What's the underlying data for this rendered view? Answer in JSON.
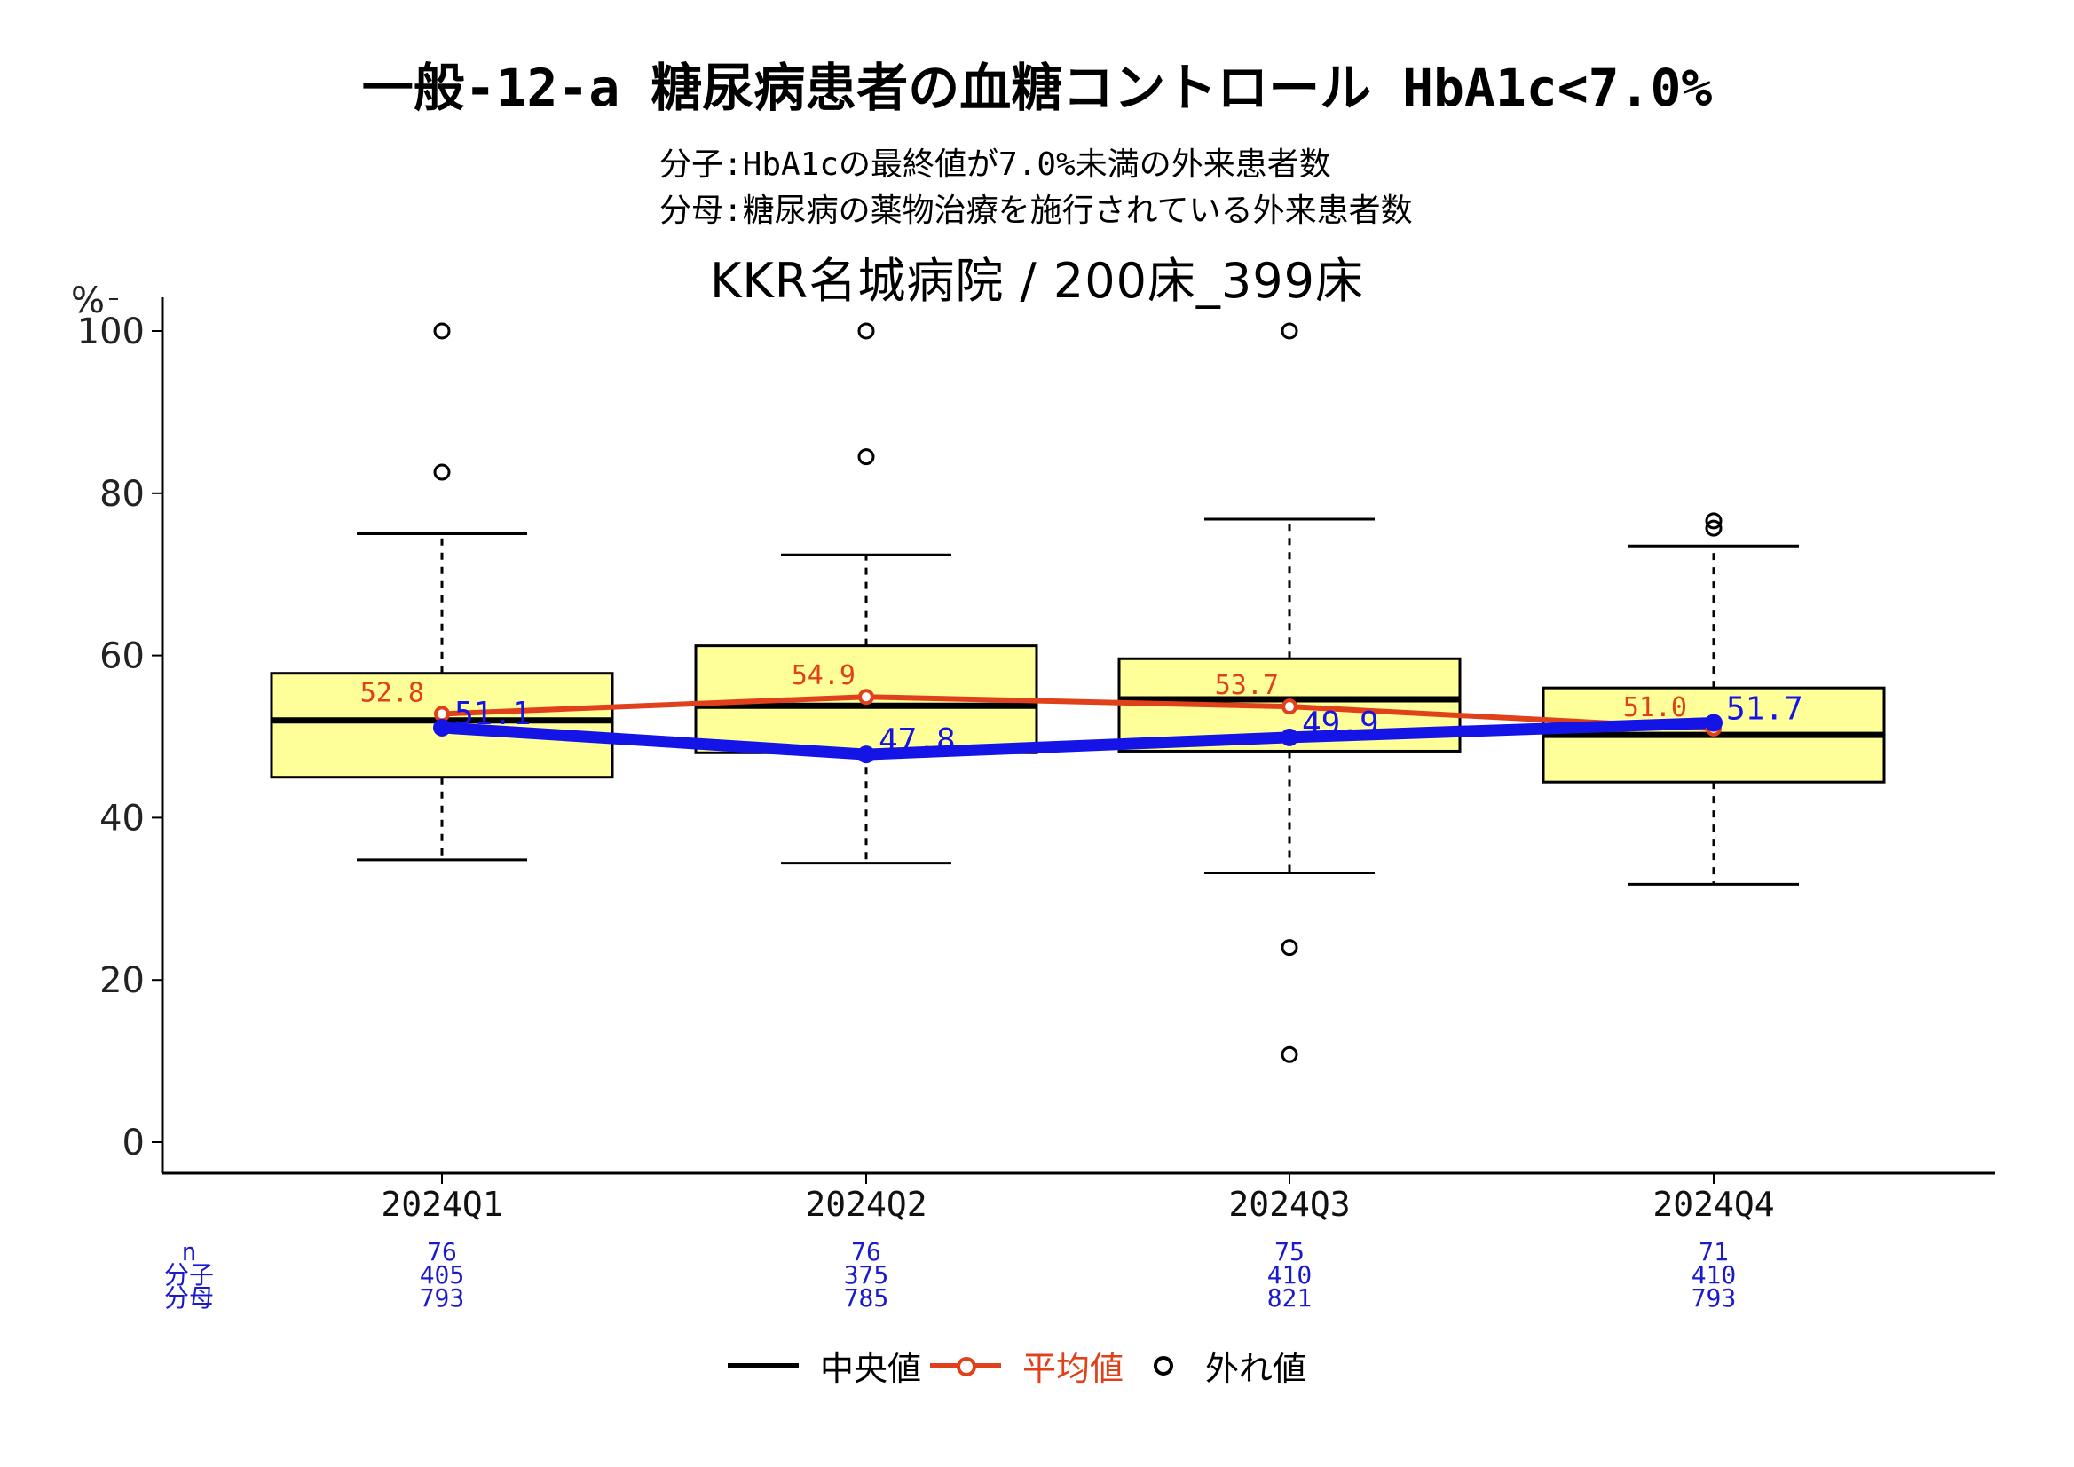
{
  "title": "一般-12-a 糖尿病患者の血糖コントロール HbA1c<7.0%",
  "subtitle_lines": [
    "分子:HbA1cの最終値が7.0%未満の外来患者数",
    "分母:糖尿病の薬物治療を施行されている外来患者数"
  ],
  "hospital_title": "KKR名城病院 / 200床_399床",
  "colors": {
    "box_fill": "#ffff99",
    "median": "#000000",
    "mean_line": "#e0401a",
    "hospital_line": "#1414e6",
    "count_text": "#1a1acc"
  },
  "chart_data": {
    "type": "box",
    "ylabel": "%",
    "ylim": [
      0,
      100
    ],
    "yticks": [
      0,
      20,
      40,
      60,
      80,
      100
    ],
    "categories": [
      "2024Q1",
      "2024Q2",
      "2024Q3",
      "2024Q4"
    ],
    "boxes": [
      {
        "whisker_low": 34.8,
        "q1": 45.0,
        "median": 52.0,
        "q3": 57.8,
        "whisker_high": 75.0,
        "outliers": [
          100,
          82.6
        ]
      },
      {
        "whisker_low": 34.4,
        "q1": 48.0,
        "median": 53.8,
        "q3": 61.2,
        "whisker_high": 72.4,
        "outliers": [
          100,
          84.5
        ]
      },
      {
        "whisker_low": 33.2,
        "q1": 48.2,
        "median": 54.6,
        "q3": 59.6,
        "whisker_high": 76.8,
        "outliers": [
          100,
          24.0,
          10.8
        ]
      },
      {
        "whisker_low": 31.8,
        "q1": 44.4,
        "median": 50.2,
        "q3": 56.0,
        "whisker_high": 73.5,
        "outliers": [
          76.6,
          75.7
        ]
      }
    ],
    "series": [
      {
        "name": "平均値",
        "values": [
          52.8,
          54.9,
          53.7,
          51.0
        ],
        "labels": [
          "52.8",
          "54.9",
          "53.7",
          "51.0"
        ]
      },
      {
        "values": [
          51.1,
          47.8,
          49.9,
          51.7
        ],
        "labels": [
          "51.1",
          "47.8",
          "49.9",
          "51.7"
        ]
      }
    ],
    "counts": {
      "row_labels": [
        "n",
        "分子",
        "分母"
      ],
      "n": [
        "76",
        "76",
        "75",
        "71"
      ],
      "numerator": [
        "405",
        "375",
        "410",
        "410"
      ],
      "denominator": [
        "793",
        "785",
        "821",
        "793"
      ]
    },
    "legend": {
      "position": "bottom",
      "items": [
        "中央値",
        "平均値",
        "外れ値"
      ]
    },
    "grid": false
  }
}
